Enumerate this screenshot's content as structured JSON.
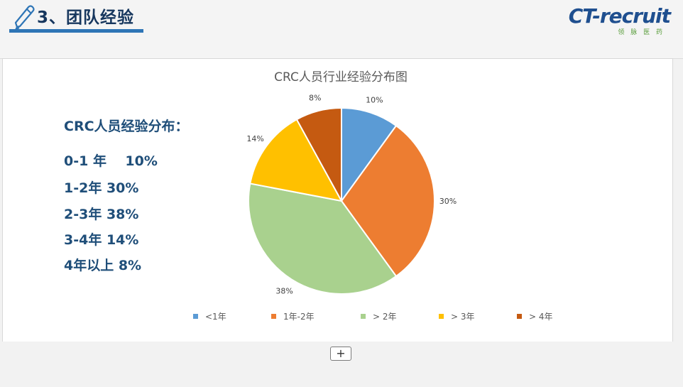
{
  "header": {
    "title": "3、团队经验",
    "logo_text": "CT-recruit",
    "logo_subtext": "领 脉 医 药"
  },
  "left_panel": {
    "heading": "CRC人员经验分布：",
    "lines": [
      "0-1 年    10%",
      "1-2年 30%",
      "2-3年 38%",
      "3-4年 14%",
      "4年以上 8%"
    ]
  },
  "chart_data": {
    "type": "pie",
    "title": "CRC人员行业经验分布图",
    "categories": [
      "<1年",
      "1年-2年",
      "> 2年",
      "> 3年",
      "> 4年"
    ],
    "values": [
      10,
      30,
      38,
      14,
      8
    ],
    "labels": [
      "10%",
      "30%",
      "38%",
      "14%",
      "8%"
    ],
    "colors": [
      "#5b9bd5",
      "#ed7d31",
      "#a9d18e",
      "#ffc000",
      "#c55a11"
    ],
    "legend": "bottom"
  },
  "footer": {
    "add_label": "+"
  }
}
